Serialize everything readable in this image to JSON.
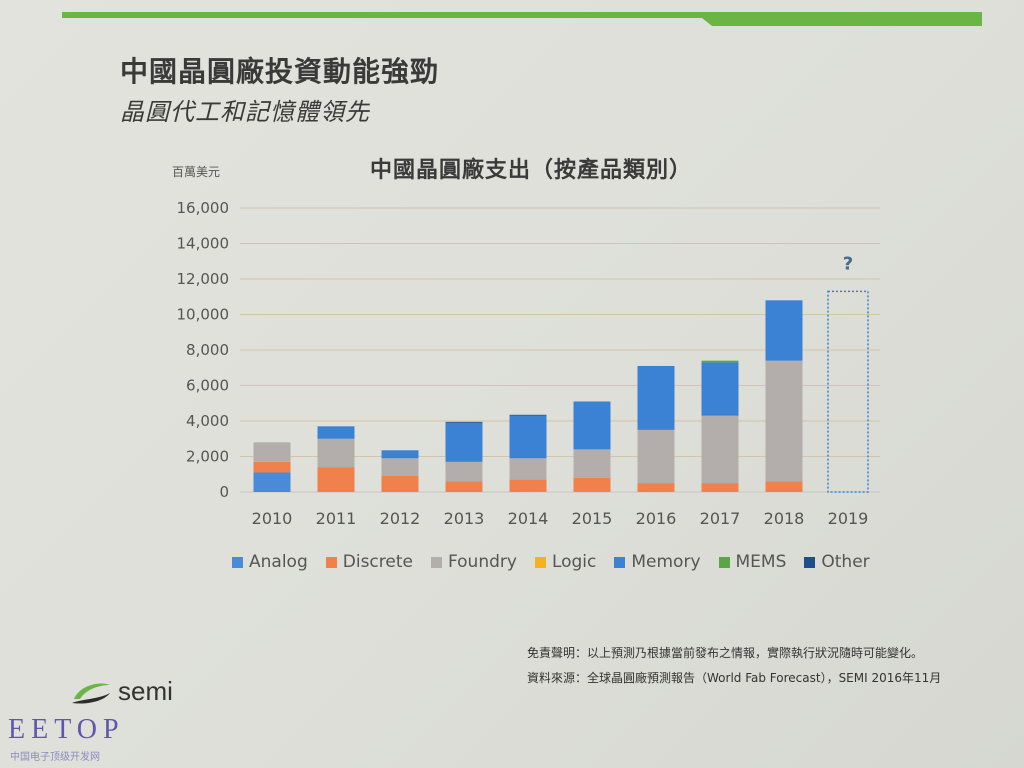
{
  "slide": {
    "title": "中國晶圓廠投資動能強勁",
    "subtitle": "晶圓代工和記憶體領先",
    "chart_title": "中國晶圓廠支出（按產品類別）",
    "unit_label": "百萬美元",
    "footnote_1": "免責聲明：以上預測乃根據當前發布之情報，實際執行狀況隨時可能變化。",
    "footnote_2": "資料來源：全球晶圓廠預測報告（World Fab Forecast），SEMI 2016年11月",
    "logo_text": "semi",
    "watermark": "EETOP",
    "watermark_sub": "中国电子顶级开发网"
  },
  "colors": {
    "accent_green": "#6bb544",
    "Analog": "#4a8ad6",
    "Discrete": "#f0804c",
    "Foundry": "#b3adab",
    "Logic": "#f3b221",
    "Memory": "#3b82d4",
    "MEMS": "#5aa646",
    "Other": "#1f4e8c"
  },
  "chart_data": {
    "type": "bar",
    "stacked": true,
    "categories": [
      "2010",
      "2011",
      "2012",
      "2013",
      "2014",
      "2015",
      "2016",
      "2017",
      "2018",
      "2019"
    ],
    "ylim": [
      0,
      16000
    ],
    "yticks": [
      0,
      2000,
      4000,
      6000,
      8000,
      10000,
      12000,
      14000,
      16000
    ],
    "ytick_labels": [
      "0",
      "2,000",
      "4,000",
      "6,000",
      "8,000",
      "10,000",
      "12,000",
      "14,000",
      "16,000"
    ],
    "ylabel": "百萬美元",
    "title": "中國晶圓廠支出（按產品類別）",
    "grid": true,
    "legend_position": "bottom",
    "series": [
      {
        "name": "Analog",
        "values": [
          1100,
          0,
          0,
          0,
          0,
          0,
          0,
          0,
          0,
          null
        ]
      },
      {
        "name": "Discrete",
        "values": [
          600,
          1400,
          900,
          600,
          700,
          800,
          500,
          500,
          600,
          null
        ]
      },
      {
        "name": "Foundry",
        "values": [
          1100,
          1600,
          1000,
          1100,
          1200,
          1600,
          3000,
          3800,
          6800,
          null
        ]
      },
      {
        "name": "Logic",
        "values": [
          0,
          0,
          0,
          0,
          0,
          0,
          0,
          0,
          0,
          null
        ]
      },
      {
        "name": "Memory",
        "values": [
          0,
          700,
          450,
          2200,
          2400,
          2700,
          3600,
          3000,
          3400,
          null
        ]
      },
      {
        "name": "MEMS",
        "values": [
          0,
          0,
          0,
          0,
          0,
          0,
          0,
          100,
          0,
          null
        ]
      },
      {
        "name": "Other",
        "values": [
          0,
          0,
          0,
          50,
          50,
          0,
          0,
          0,
          0,
          null
        ]
      }
    ],
    "forecast": {
      "category": "2019",
      "value": 11300,
      "label": "?",
      "style": "dotted-outline"
    }
  }
}
